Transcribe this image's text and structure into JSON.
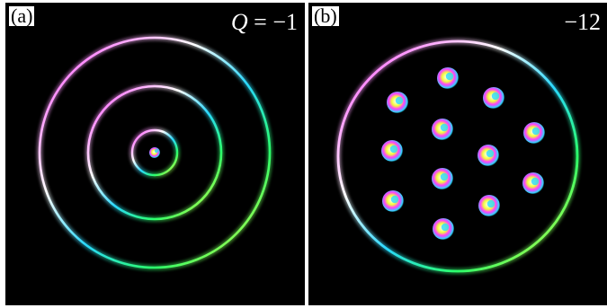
{
  "panels": [
    {
      "tag": "(a)",
      "q_symbol": "Q",
      "q_equals": " = ",
      "q_value": "−1",
      "ring_count": 3,
      "skyrmion_count": 1
    },
    {
      "tag": "(b)",
      "q_value": "−12",
      "ring_count": 1,
      "skyrmion_count": 12
    }
  ],
  "colors": {
    "background": "#000000",
    "ring_magenta": "#ff3cff",
    "ring_cyan": "#2ad8ff",
    "ring_yellow": "#f2ff3a",
    "ring_green": "#2cff6a",
    "ring_white": "#ffffff"
  }
}
